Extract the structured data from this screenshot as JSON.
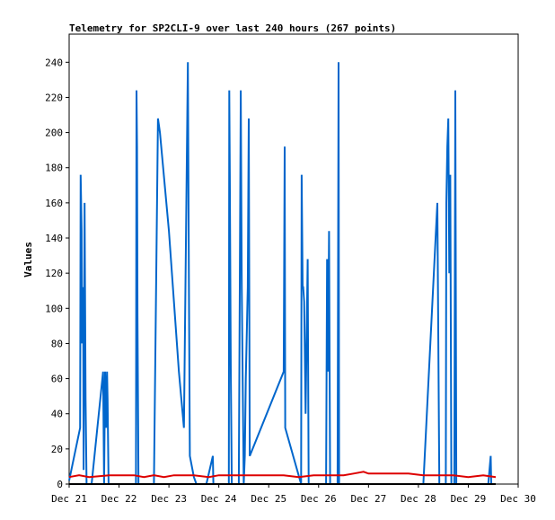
{
  "chart_data": {
    "type": "line",
    "title": "Telemetry for SP2CLI-9 over last 240 hours (267 points)",
    "xlabel": "",
    "ylabel": "Values",
    "xlim": [
      21,
      30
    ],
    "ylim": [
      0,
      256
    ],
    "x_ticks": [
      "Dec 21",
      "Dec 22",
      "Dec 23",
      "Dec 24",
      "Dec 25",
      "Dec 26",
      "Dec 27",
      "Dec 28",
      "Dec 29",
      "Dec 30"
    ],
    "y_ticks": [
      0,
      20,
      40,
      60,
      80,
      100,
      120,
      140,
      160,
      180,
      200,
      220,
      240
    ],
    "grid": false,
    "series": [
      {
        "color": "#0066cc",
        "points": [
          [
            21.0,
            2
          ],
          [
            21.22,
            32
          ],
          [
            21.23,
            176
          ],
          [
            21.25,
            144
          ],
          [
            21.26,
            80
          ],
          [
            21.28,
            112
          ],
          [
            21.29,
            8
          ],
          [
            21.31,
            160
          ],
          [
            21.33,
            48
          ],
          [
            21.35,
            0
          ],
          [
            21.45,
            0
          ],
          [
            21.68,
            64
          ],
          [
            21.7,
            0
          ],
          [
            21.72,
            64
          ],
          [
            21.74,
            32
          ],
          [
            21.76,
            64
          ],
          [
            21.77,
            48
          ],
          [
            21.79,
            0
          ],
          [
            21.95,
            0
          ],
          [
            22.34,
            0
          ],
          [
            22.35,
            224
          ],
          [
            22.36,
            192
          ],
          [
            22.37,
            96
          ],
          [
            22.39,
            0
          ],
          [
            22.7,
            0
          ],
          [
            22.78,
            208
          ],
          [
            22.82,
            200
          ],
          [
            23.0,
            144
          ],
          [
            23.2,
            64
          ],
          [
            23.3,
            32
          ],
          [
            23.38,
            240
          ],
          [
            23.4,
            120
          ],
          [
            23.42,
            16
          ],
          [
            23.5,
            4
          ],
          [
            23.55,
            0
          ],
          [
            23.75,
            0
          ],
          [
            23.88,
            16
          ],
          [
            23.89,
            0
          ],
          [
            24.05,
            0
          ],
          [
            24.2,
            0
          ],
          [
            24.21,
            224
          ],
          [
            24.22,
            176
          ],
          [
            24.24,
            64
          ],
          [
            24.26,
            0
          ],
          [
            24.4,
            0
          ],
          [
            24.44,
            224
          ],
          [
            24.46,
            112
          ],
          [
            24.5,
            0
          ],
          [
            24.52,
            16
          ],
          [
            24.54,
            60
          ],
          [
            24.58,
            112
          ],
          [
            24.6,
            208
          ],
          [
            24.62,
            16
          ],
          [
            25.3,
            64
          ],
          [
            25.32,
            192
          ],
          [
            25.33,
            32
          ],
          [
            25.65,
            0
          ],
          [
            25.66,
            176
          ],
          [
            25.68,
            112
          ],
          [
            25.69,
            112
          ],
          [
            25.71,
            104
          ],
          [
            25.74,
            40
          ],
          [
            25.78,
            128
          ],
          [
            25.8,
            0
          ],
          [
            26.15,
            0
          ],
          [
            26.17,
            128
          ],
          [
            26.19,
            64
          ],
          [
            26.21,
            144
          ],
          [
            26.23,
            0
          ],
          [
            26.38,
            0
          ],
          [
            26.4,
            240
          ],
          [
            26.41,
            0
          ],
          [
            28.1,
            0
          ],
          [
            28.38,
            160
          ],
          [
            28.4,
            80
          ],
          [
            28.42,
            0
          ],
          [
            28.55,
            0
          ],
          [
            28.56,
            160
          ],
          [
            28.58,
            192
          ],
          [
            28.6,
            208
          ],
          [
            28.62,
            120
          ],
          [
            28.64,
            176
          ],
          [
            28.66,
            0
          ],
          [
            28.72,
            0
          ],
          [
            28.74,
            224
          ],
          [
            28.76,
            0
          ],
          [
            29.4,
            0
          ],
          [
            29.45,
            16
          ],
          [
            29.46,
            0
          ]
        ]
      },
      {
        "color": "#dd0000",
        "points": [
          [
            21.0,
            4
          ],
          [
            21.2,
            5
          ],
          [
            21.4,
            4
          ],
          [
            21.8,
            5
          ],
          [
            22.0,
            5
          ],
          [
            22.3,
            5
          ],
          [
            22.5,
            4
          ],
          [
            22.7,
            5
          ],
          [
            22.9,
            4
          ],
          [
            23.1,
            5
          ],
          [
            23.5,
            5
          ],
          [
            23.8,
            4
          ],
          [
            24.0,
            5
          ],
          [
            24.3,
            5
          ],
          [
            24.6,
            5
          ],
          [
            25.0,
            5
          ],
          [
            25.3,
            5
          ],
          [
            25.6,
            4
          ],
          [
            25.9,
            5
          ],
          [
            26.2,
            5
          ],
          [
            26.5,
            5
          ],
          [
            26.7,
            6
          ],
          [
            26.9,
            7
          ],
          [
            27.0,
            6
          ],
          [
            27.3,
            6
          ],
          [
            27.8,
            6
          ],
          [
            28.1,
            5
          ],
          [
            28.4,
            5
          ],
          [
            28.7,
            5
          ],
          [
            29.0,
            4
          ],
          [
            29.3,
            5
          ],
          [
            29.55,
            4
          ]
        ]
      },
      {
        "color": "#000000",
        "points": [
          [
            21.0,
            0
          ],
          [
            29.55,
            0
          ]
        ]
      }
    ]
  }
}
